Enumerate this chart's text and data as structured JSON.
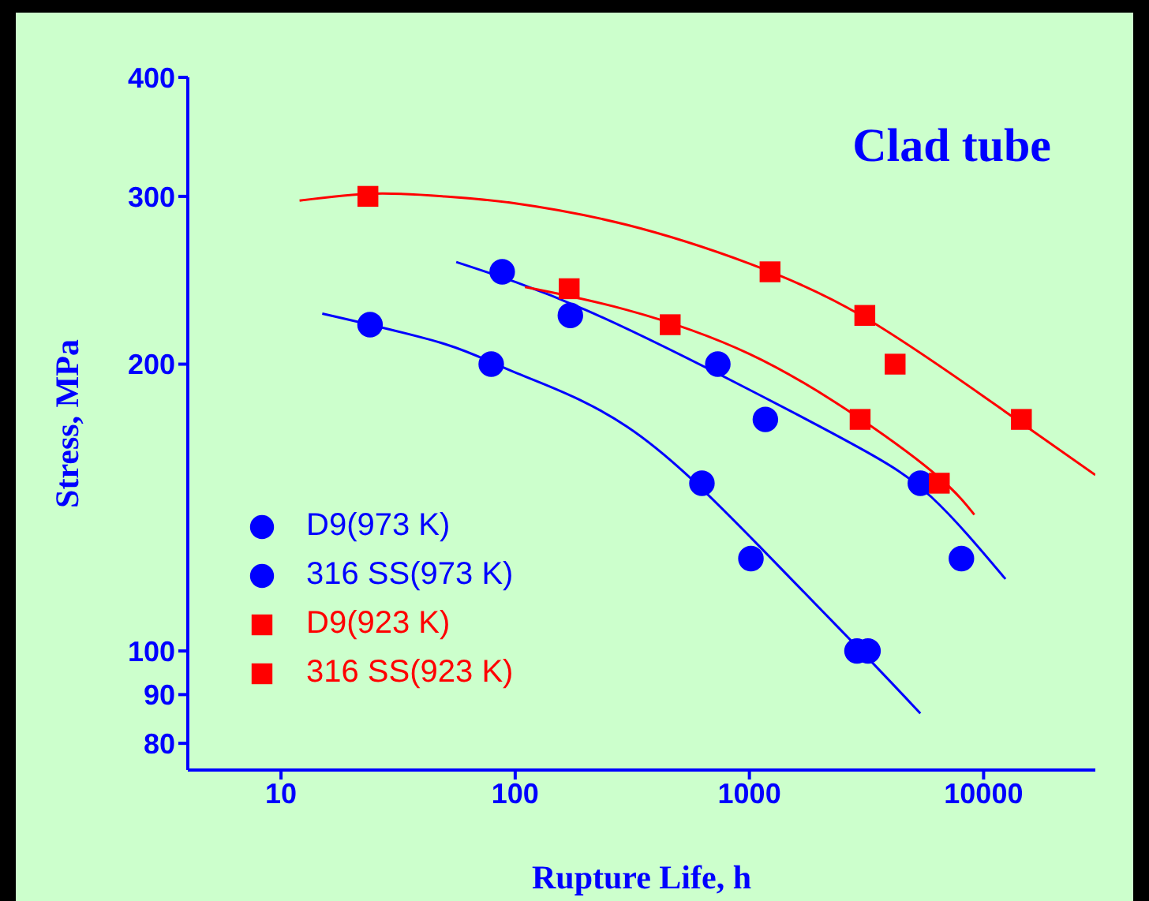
{
  "chart_data": {
    "type": "scatter",
    "title": "Clad tube",
    "xlabel": "Rupture Life, h",
    "ylabel": "Stress, MPa",
    "log": "xy",
    "legend": "bottom left",
    "xlim": [
      4,
      30000
    ],
    "xticks": [
      10,
      100,
      1000,
      10000
    ],
    "ylim": [
      75,
      400
    ],
    "yticks": [
      80,
      90,
      100,
      200,
      300,
      400
    ],
    "series": [
      {
        "name": "D9(973 K)",
        "marker": "circle",
        "color": "#0000ff",
        "x": [
          88,
          172,
          733,
          1170,
          5370,
          8040
        ],
        "values": [
          250,
          225,
          200,
          175,
          150,
          125
        ]
      },
      {
        "name": "316 SS(973 K)",
        "marker": "circle",
        "color": "#0000ff",
        "x": [
          24,
          79,
          627,
          1015,
          2880,
          3210
        ],
        "values": [
          220,
          200,
          150,
          125,
          100,
          100
        ]
      },
      {
        "name": "D9(923 K)",
        "marker": "square",
        "color": "#ff0000",
        "x": [
          23.5,
          1225,
          3110,
          4190,
          14500
        ],
        "values": [
          300,
          250,
          225,
          200,
          175
        ]
      },
      {
        "name": "316 SS(923 K)",
        "marker": "square",
        "color": "#ff0000",
        "x": [
          170,
          459,
          2970,
          6470
        ],
        "values": [
          240,
          220,
          175,
          150
        ]
      },
      {
        "type": "line",
        "color": "#0000ff",
        "x": [
          56,
          200,
          1000,
          3000,
          6000,
          12400
        ],
        "values": [
          256,
          228,
          188,
          163,
          145,
          119
        ]
      },
      {
        "type": "line",
        "color": "#0000ff",
        "x": [
          15,
          50,
          100,
          300,
          1000,
          3000,
          5370
        ],
        "values": [
          226,
          210,
          196,
          172,
          132,
          100,
          86
        ]
      },
      {
        "type": "line",
        "color": "#ff0000",
        "x": [
          12,
          25,
          50,
          100,
          300,
          1000,
          3000,
          10000,
          30000
        ],
        "values": [
          297,
          302,
          300,
          295,
          280,
          255,
          225,
          185,
          153
        ]
      },
      {
        "type": "line",
        "color": "#ff0000",
        "x": [
          110,
          300,
          1000,
          3000,
          6470,
          9130
        ],
        "values": [
          241,
          228,
          205,
          175,
          152,
          139
        ]
      }
    ]
  }
}
